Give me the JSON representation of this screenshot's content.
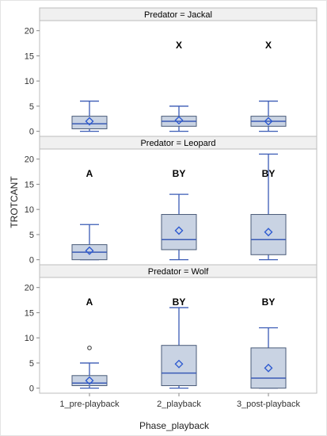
{
  "chart_data": {
    "type": "boxplot",
    "xlabel": "Phase_playback",
    "ylabel": "TROTCANT",
    "categories": [
      "1_pre-playback",
      "2_playback",
      "3_post-playback"
    ],
    "ylim": [
      -1,
      22
    ],
    "yticks": [
      0,
      5,
      10,
      15,
      20
    ],
    "colors": {
      "box_fill": "#c9d3e3",
      "box_stroke": "#4a5b78",
      "line": "#3a5bb5",
      "mean_marker": "#2f5bd0"
    },
    "panels": [
      {
        "strip": "Predator = Jackal",
        "boxes": [
          {
            "whisker_low": 0,
            "q1": 0.5,
            "median": 1.5,
            "q3": 3,
            "whisker_high": 6,
            "mean": 2,
            "outliers": [],
            "letter": ""
          },
          {
            "whisker_low": 0,
            "q1": 1,
            "median": 2,
            "q3": 3,
            "whisker_high": 5,
            "mean": 2.2,
            "outliers": [],
            "letter": "X"
          },
          {
            "whisker_low": 0,
            "q1": 1,
            "median": 2,
            "q3": 3,
            "whisker_high": 6,
            "mean": 2,
            "outliers": [],
            "letter": "X"
          }
        ]
      },
      {
        "strip": "Predator = Leopard",
        "boxes": [
          {
            "whisker_low": 0,
            "q1": 0,
            "median": 1.5,
            "q3": 3,
            "whisker_high": 7,
            "mean": 1.8,
            "outliers": [],
            "letter": "A"
          },
          {
            "whisker_low": 0,
            "q1": 2,
            "median": 4,
            "q3": 9,
            "whisker_high": 13,
            "mean": 5.8,
            "outliers": [],
            "letter": "BY"
          },
          {
            "whisker_low": 0,
            "q1": 1,
            "median": 4,
            "q3": 9,
            "whisker_high": 21,
            "mean": 5.5,
            "outliers": [],
            "letter": "BY"
          }
        ]
      },
      {
        "strip": "Predator = Wolf",
        "boxes": [
          {
            "whisker_low": 0,
            "q1": 0.5,
            "median": 1,
            "q3": 2.5,
            "whisker_high": 5,
            "mean": 1.5,
            "outliers": [
              8
            ],
            "letter": "A"
          },
          {
            "whisker_low": 0,
            "q1": 0.5,
            "median": 3,
            "q3": 8.5,
            "whisker_high": 16,
            "mean": 4.8,
            "outliers": [],
            "letter": "BY"
          },
          {
            "whisker_low": 0,
            "q1": 0,
            "median": 2,
            "q3": 8,
            "whisker_high": 12,
            "mean": 4,
            "outliers": [],
            "letter": "BY"
          }
        ]
      }
    ]
  }
}
